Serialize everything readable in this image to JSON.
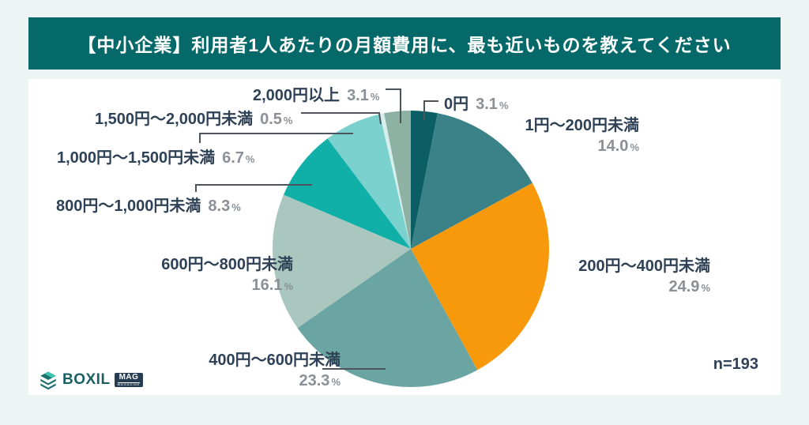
{
  "header": {
    "title": "【中小企業】利用者1人あたりの月額費用に、最も近いものを教えてください"
  },
  "footer": {
    "sample_size_label": "n=193",
    "logo": {
      "brand": "BOXIL",
      "badge": "MAG",
      "badge_sub": "MAGAZINE",
      "icon": "layers-stack-icon"
    }
  },
  "chart_data": {
    "type": "pie",
    "title": "【中小企業】利用者1人あたりの月額費用に、最も近いものを教えてください",
    "categories": [
      "0円",
      "1円〜200円未満",
      "200円〜400円未満",
      "400円〜600円未満",
      "600円〜800円未満",
      "800円〜1,000円未満",
      "1,000円〜1,500円未満",
      "1,500円〜2,000円未満",
      "2,000円以上"
    ],
    "values": [
      3.1,
      14.0,
      24.9,
      23.3,
      16.1,
      8.3,
      6.7,
      0.5,
      3.1
    ],
    "value_labels": [
      "3.1",
      "14.0",
      "24.9",
      "23.3",
      "16.1",
      "8.3",
      "6.7",
      "0.5",
      "3.1"
    ],
    "unit": "%",
    "sample_size": 193,
    "colors": [
      "#0b5f64",
      "#3a8188",
      "#f8990b",
      "#6aa5a3",
      "#a9c7be",
      "#10b0a9",
      "#7bd1cd",
      "#d5efed",
      "#8db2a4"
    ],
    "start_angle_deg": 0,
    "direction": "clockwise",
    "legend_position": "labels-around-pie",
    "grid": false
  },
  "colors": {
    "background": "#ecf5f3",
    "header_bg": "#05696a",
    "card_bg": "#ffffff",
    "label_text": "#2e4156",
    "pct_text": "#8a9096",
    "leader_line": "#4d545b",
    "accent_orange": "#f8990b"
  }
}
